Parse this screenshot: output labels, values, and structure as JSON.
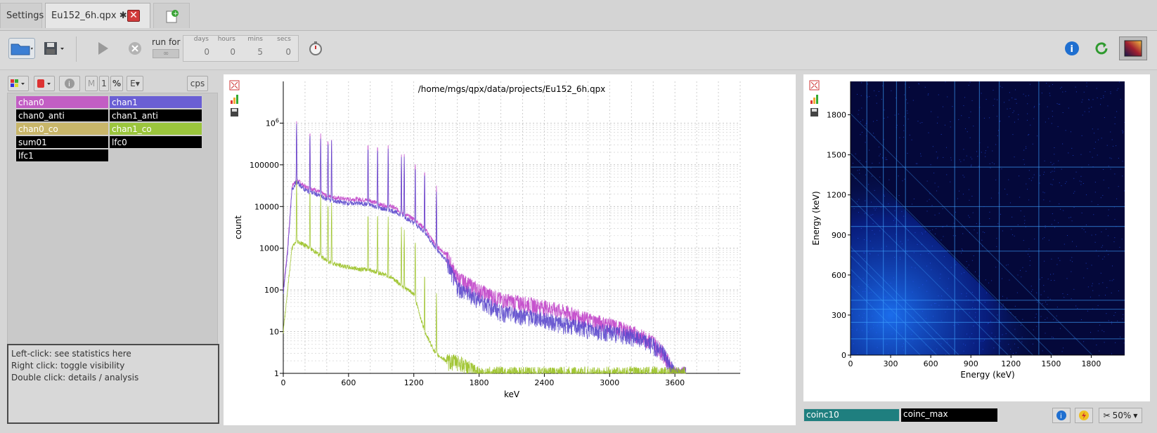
{
  "tabs": [
    {
      "label": "Settings"
    },
    {
      "label": "Eu152_6h.qpx ✱"
    }
  ],
  "toolbar": {
    "run_for_label": "run for",
    "run_button_label": "∞",
    "time_fields": [
      {
        "unit": "days",
        "value": "0"
      },
      {
        "unit": "hours",
        "value": "0"
      },
      {
        "unit": "mins",
        "value": "5"
      },
      {
        "unit": "secs",
        "value": "0"
      }
    ]
  },
  "left": {
    "buttons": {
      "m": "M",
      "one": "1",
      "pct": "%",
      "e": "E",
      "cps": "cps"
    },
    "channels": [
      {
        "label": "chan0",
        "color": "#c25ec4"
      },
      {
        "label": "chan1",
        "color": "#6a5fd4"
      },
      {
        "label": "chan0_anti",
        "color": "#000000"
      },
      {
        "label": "chan1_anti",
        "color": "#000000"
      },
      {
        "label": "chan0_co",
        "color": "#c8b66a"
      },
      {
        "label": "chan1_co",
        "color": "#9bc53d"
      },
      {
        "label": "sum01",
        "color": "#000000"
      },
      {
        "label": "lfc0",
        "color": "#000000"
      },
      {
        "label": "lfc1",
        "color": "#000000"
      }
    ],
    "help_lines": [
      "Left-click: see statistics here",
      "Right click: toggle visibility",
      "Double click: details / analysis"
    ]
  },
  "spectrum": {
    "title": "/home/mgs/qpx/data/projects/Eu152_6h.qpx",
    "xlabel": "keV",
    "ylabel": "count"
  },
  "matrix": {
    "xlabel": "Energy (keV)",
    "ylabel": "Energy (keV)"
  },
  "matrix_bottom": {
    "items": [
      {
        "label": "coinc10",
        "color": "#1f7f7f"
      },
      {
        "label": "coinc_max",
        "color": "#000000"
      }
    ],
    "zoom": "50%"
  },
  "chart_data": [
    {
      "type": "line",
      "title": "/home/mgs/qpx/data/projects/Eu152_6h.qpx",
      "xlabel": "keV",
      "ylabel": "count",
      "xlim": [
        0,
        4200
      ],
      "ylim": [
        1,
        10000000
      ],
      "yscale": "log",
      "x_ticks": [
        0,
        600,
        1200,
        1800,
        2400,
        3000,
        3600
      ],
      "y_tick_labels": [
        "1",
        "10",
        "100",
        "1000",
        "10000",
        "100000",
        "10^6"
      ],
      "grid": true,
      "x": [
        0,
        40,
        80,
        120,
        200,
        300,
        400,
        500,
        600,
        700,
        800,
        900,
        1000,
        1100,
        1200,
        1300,
        1400,
        1500,
        1600,
        1800,
        2000,
        2200,
        2400,
        2600,
        2800,
        3000,
        3200,
        3400,
        3500,
        3600,
        3700
      ],
      "series": [
        {
          "name": "chan0",
          "color": "#c040c8",
          "values": [
            100,
            1000,
            30000,
            45000,
            30000,
            25000,
            18000,
            16000,
            15000,
            15000,
            14000,
            11000,
            10000,
            7000,
            5000,
            3000,
            1200,
            700,
            200,
            100,
            60,
            50,
            40,
            30,
            20,
            15,
            10,
            6,
            3,
            1,
            1
          ]
        },
        {
          "name": "chan1",
          "color": "#5b48cc",
          "values": [
            80,
            800,
            25000,
            40000,
            25000,
            20000,
            15000,
            13000,
            12000,
            12000,
            11000,
            9000,
            8000,
            6000,
            4000,
            2500,
            1000,
            500,
            120,
            60,
            30,
            25,
            20,
            15,
            12,
            10,
            8,
            5,
            3,
            1,
            1
          ]
        },
        {
          "name": "chan1_co",
          "color": "#98c020",
          "values": [
            10,
            100,
            1000,
            1500,
            1200,
            800,
            500,
            400,
            350,
            320,
            300,
            250,
            200,
            120,
            80,
            10,
            3,
            2,
            2,
            1,
            1,
            1,
            1,
            1,
            1,
            1,
            1,
            1,
            1,
            1,
            1
          ]
        }
      ],
      "peaks_keV": [
        122,
        245,
        344,
        411,
        444,
        779,
        867,
        964,
        1086,
        1112,
        1213,
        1299,
        1408
      ]
    },
    {
      "type": "heatmap",
      "xlabel": "Energy (keV)",
      "ylabel": "Energy (keV)",
      "xlim": [
        0,
        2050
      ],
      "ylim": [
        0,
        2050
      ],
      "x_ticks": [
        0,
        300,
        600,
        900,
        1200,
        1500,
        1800
      ],
      "y_ticks": [
        0,
        300,
        600,
        900,
        1200,
        1500,
        1800
      ],
      "lines_keV": [
        122,
        245,
        344,
        411,
        779,
        964,
        1112,
        1408
      ]
    }
  ]
}
